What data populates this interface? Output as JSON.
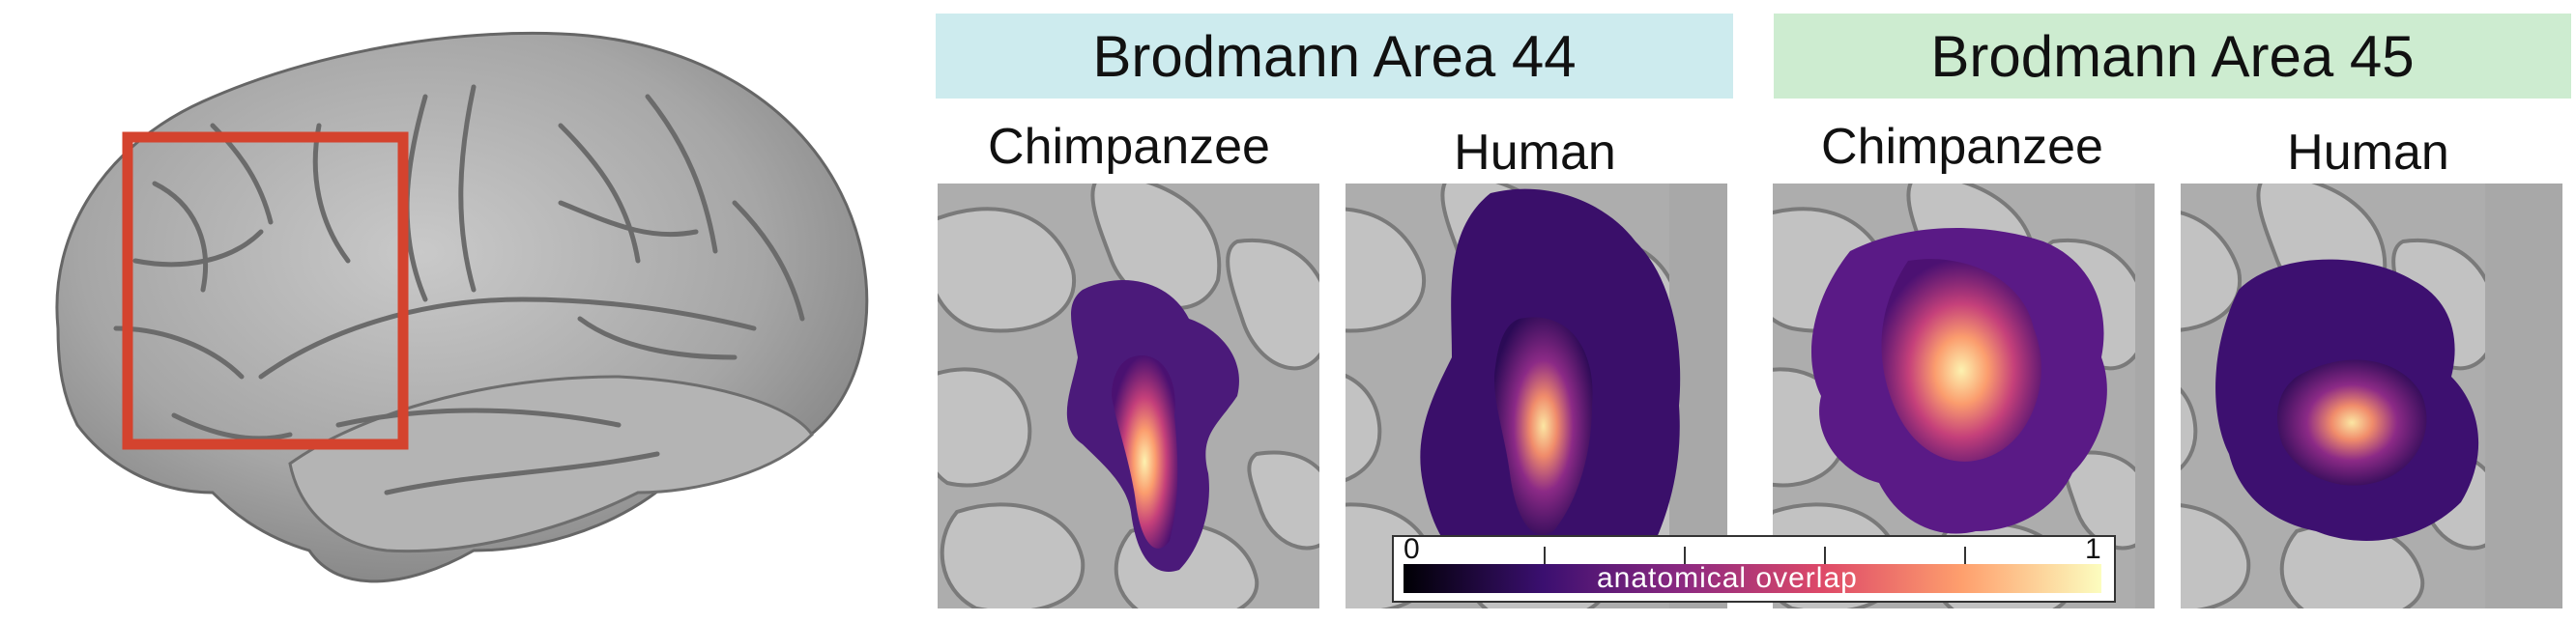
{
  "figure": {
    "overview": {
      "region_box_color": "#d4432e",
      "brain_color": "#a9a9a9"
    },
    "areas": [
      {
        "header": "Brodmann Area 44",
        "header_color": "#cdebee",
        "columns": [
          "Chimpanzee",
          "Human"
        ]
      },
      {
        "header": "Brodmann Area 45",
        "header_color": "#cdecd0",
        "columns": [
          "Chimpanzee",
          "Human"
        ]
      }
    ],
    "colorbar": {
      "label": "anatomical overlap",
      "min_label": "0",
      "max_label": "1",
      "colormap": [
        "#000004",
        "#3b0f70",
        "#8c2981",
        "#de4968",
        "#fe9f6d",
        "#fcfdbf"
      ]
    }
  }
}
